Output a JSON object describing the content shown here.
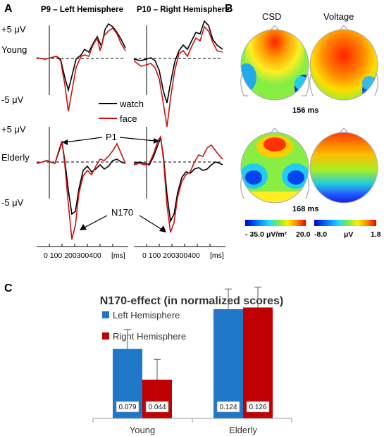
{
  "panels": {
    "a": "A",
    "b": "B",
    "c": "C"
  },
  "erp": {
    "left_title": "P9 – Left Hemisphere",
    "right_title": "P10 – Right Hemisphere",
    "y_pos_label": "+5 μV",
    "y_neg_label": "-5 μV",
    "group_young": "Young",
    "group_elderly": "Elderly",
    "legend_watch": "watch",
    "legend_face": "face",
    "watch_color": "#000000",
    "face_color": "#cc1111",
    "p1_label": "P1",
    "n170_label": "N170",
    "x_ticks": "0 100 200300400",
    "x_unit": "[ms]"
  },
  "topo": {
    "csd_title": "CSD",
    "voltage_title": "Voltage",
    "time_1": "156 ms",
    "time_2": "168 ms",
    "csd_min": "- 35.0",
    "csd_unit": "μV/m²",
    "csd_max": "20.0",
    "volt_min": "-8.0",
    "volt_unit": "μV",
    "volt_max": "1.8"
  },
  "chart_data": {
    "type": "bar",
    "title": "N170-effect (in normalized scores)",
    "categories": [
      "Young",
      "Elderly"
    ],
    "series": [
      {
        "name": "Left Hemisphere",
        "values": [
          0.079,
          0.124
        ],
        "errors": [
          0.022,
          0.023
        ],
        "color": "#1f77c8"
      },
      {
        "name": "Right Hemisphere",
        "values": [
          0.044,
          0.126
        ],
        "errors": [
          0.023,
          0.023
        ],
        "color": "#c00000"
      }
    ],
    "value_labels": [
      [
        "0.079",
        "0.124"
      ],
      [
        "0.044",
        "0.126"
      ]
    ],
    "ylim": [
      0,
      0.16
    ],
    "xlabel": "",
    "ylabel": "",
    "legend": "top-left",
    "grid": false
  }
}
